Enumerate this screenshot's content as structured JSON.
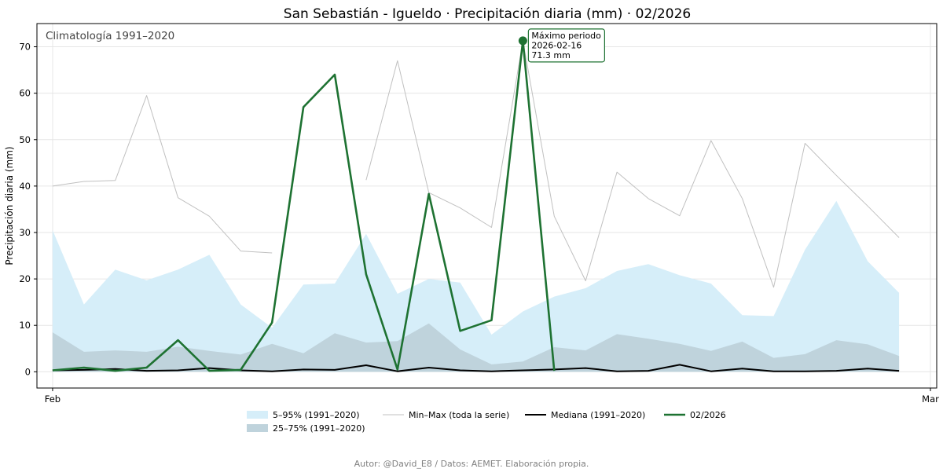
{
  "chart_data": {
    "type": "area",
    "title": "San Sebastián - Igueldo · Precipitación diaria (mm) · 02/2026",
    "subtitle": "Climatología 1991–2020",
    "xlabel": "",
    "ylabel": "Precipitación diaria (mm)",
    "ylim": [
      -3.5,
      75
    ],
    "yticks": [
      0,
      10,
      20,
      30,
      40,
      50,
      60,
      70
    ],
    "xlim": [
      0.5,
      29.2
    ],
    "xticks": [
      {
        "day": 1,
        "label": "Feb"
      },
      {
        "day": 29,
        "label": "Mar"
      }
    ],
    "grid": true,
    "legend_position": "bottom-center",
    "days": [
      1,
      2,
      3,
      4,
      5,
      6,
      7,
      8,
      9,
      10,
      11,
      12,
      13,
      14,
      15,
      16,
      17,
      18,
      19,
      20,
      21,
      22,
      23,
      24,
      25,
      26,
      27,
      28
    ],
    "series": [
      {
        "name": "5–95% (1991–2020)",
        "kind": "band",
        "color": "#d6eef9",
        "low": [
          0,
          0,
          0,
          0,
          0,
          0,
          0,
          0,
          0,
          0,
          0,
          0,
          0,
          0,
          0,
          0,
          0,
          0,
          0,
          0,
          0,
          0,
          0,
          0,
          0,
          0,
          0,
          0
        ],
        "high": [
          30.5,
          14.5,
          22,
          19.7,
          22,
          25.2,
          14.5,
          9.5,
          18.8,
          19,
          29.7,
          16.8,
          20,
          19.2,
          8,
          13,
          16.2,
          18,
          21.7,
          23.2,
          20.8,
          19,
          12.2,
          12,
          26.3,
          36.8,
          23.8,
          17
        ]
      },
      {
        "name": "25–75% (1991–2020)",
        "kind": "band",
        "color": "#bfd3dc",
        "low": [
          0,
          0,
          0,
          0,
          0,
          0,
          0,
          0,
          0,
          0,
          0,
          0,
          0,
          0,
          0,
          0,
          0,
          0,
          0,
          0,
          0,
          0,
          0,
          0,
          0,
          0,
          0,
          0
        ],
        "high": [
          8.5,
          4.3,
          4.6,
          4.3,
          5.4,
          4.5,
          3.7,
          6,
          4,
          8.3,
          6.3,
          6.6,
          10.4,
          4.8,
          1.6,
          2.2,
          5.3,
          4.6,
          8.1,
          7.1,
          6,
          4.5,
          6.5,
          3,
          3.8,
          6.8,
          5.9,
          3.4
        ]
      },
      {
        "name": "Min–Max (toda la serie)",
        "kind": "line",
        "color": "#c0c0c0",
        "values": [
          40,
          41,
          41.2,
          59.5,
          37.5,
          33.5,
          26,
          25.6,
          null,
          null,
          41.3,
          67,
          38.6,
          35.3,
          31.1,
          71.3,
          33.5,
          19.6,
          43,
          37.3,
          33.6,
          49.8,
          37.3,
          18.2,
          49.2,
          42.3,
          35.7,
          28.9
        ]
      },
      {
        "name": "Mediana (1991–2020)",
        "kind": "line",
        "color": "#000000",
        "values": [
          0.3,
          0.4,
          0.6,
          0.2,
          0.3,
          0.8,
          0.3,
          0.1,
          0.5,
          0.4,
          1.4,
          0.1,
          0.9,
          0.3,
          0.1,
          0.3,
          0.5,
          0.8,
          0.1,
          0.2,
          1.5,
          0.1,
          0.7,
          0.1,
          0.1,
          0.2,
          0.7,
          0.2
        ]
      },
      {
        "name": "02/2026",
        "kind": "line",
        "color": "#1e7232",
        "values": [
          0.3,
          0.9,
          0.2,
          0.9,
          6.8,
          0.2,
          0.4,
          10.6,
          57,
          64,
          21,
          0.5,
          38.3,
          8.8,
          11.1,
          71.3,
          0.2,
          null,
          null,
          null,
          null,
          null,
          null,
          null,
          null,
          null,
          null,
          null
        ]
      }
    ],
    "annotation": {
      "day": 16,
      "value": 71.3,
      "lines": [
        "Máximo periodo",
        "2026-02-16",
        "71.3 mm"
      ]
    },
    "credit": "Autor: @David_E8 / Datos: AEMET. Elaboración propia."
  }
}
